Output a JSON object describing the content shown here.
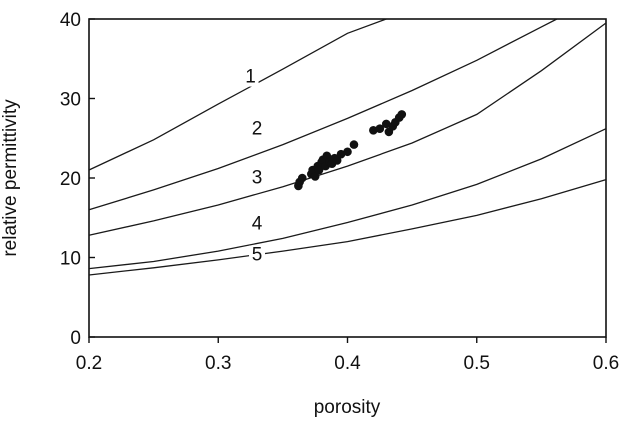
{
  "chart_data": {
    "type": "scatter",
    "xlabel": "porosity",
    "ylabel": "relative permittivity",
    "xlim": [
      0.2,
      0.6
    ],
    "ylim": [
      0,
      40
    ],
    "x_ticks": [
      "0.2",
      "0.3",
      "0.4",
      "0.5",
      "0.6"
    ],
    "y_ticks": [
      "0",
      "10",
      "20",
      "30",
      "40"
    ],
    "grid": false,
    "legend": "none",
    "series": [
      {
        "name": "1",
        "type": "line",
        "x": [
          0.2,
          0.25,
          0.3,
          0.35,
          0.4,
          0.43
        ],
        "y": [
          21,
          24.8,
          29.3,
          33.7,
          38.2,
          40
        ]
      },
      {
        "name": "2",
        "type": "line",
        "x": [
          0.2,
          0.25,
          0.3,
          0.35,
          0.4,
          0.45,
          0.5,
          0.55,
          0.562
        ],
        "y": [
          16,
          18.5,
          21.2,
          24.2,
          27.5,
          31,
          34.8,
          39,
          40
        ]
      },
      {
        "name": "3",
        "type": "line",
        "x": [
          0.2,
          0.25,
          0.3,
          0.35,
          0.4,
          0.45,
          0.5,
          0.55,
          0.6
        ],
        "y": [
          12.8,
          14.6,
          16.6,
          18.9,
          21.5,
          24.4,
          28,
          33.5,
          39.5
        ]
      },
      {
        "name": "4",
        "type": "line",
        "x": [
          0.2,
          0.25,
          0.3,
          0.35,
          0.4,
          0.45,
          0.5,
          0.55,
          0.6
        ],
        "y": [
          8.6,
          9.5,
          10.8,
          12.4,
          14.4,
          16.6,
          19.2,
          22.4,
          26.2
        ]
      },
      {
        "name": "5",
        "type": "line",
        "x": [
          0.2,
          0.25,
          0.3,
          0.35,
          0.4,
          0.45,
          0.5,
          0.55,
          0.6
        ],
        "y": [
          7.8,
          8.7,
          9.7,
          10.8,
          12,
          13.6,
          15.3,
          17.4,
          19.8
        ]
      },
      {
        "type": "scatter",
        "x": [
          0.362,
          0.363,
          0.365,
          0.372,
          0.373,
          0.375,
          0.377,
          0.378,
          0.38,
          0.381,
          0.383,
          0.384,
          0.386,
          0.388,
          0.39,
          0.392,
          0.395,
          0.4,
          0.405,
          0.42,
          0.425,
          0.43,
          0.432,
          0.435,
          0.437,
          0.44,
          0.442
        ],
        "y": [
          19,
          19.5,
          20,
          20.5,
          21,
          20.2,
          21.5,
          21,
          22,
          22.3,
          21.5,
          22.8,
          22,
          21.8,
          22.5,
          22.2,
          23,
          23.3,
          24.2,
          26,
          26.2,
          26.8,
          25.8,
          26.5,
          27,
          27.6,
          28
        ]
      }
    ],
    "curve_labels": [
      {
        "text": "1",
        "x": 0.325,
        "y": 32
      },
      {
        "text": "2",
        "x": 0.33,
        "y": 25.5
      },
      {
        "text": "3",
        "x": 0.33,
        "y": 19.3
      },
      {
        "text": "4",
        "x": 0.33,
        "y": 13.5
      },
      {
        "text": "5",
        "x": 0.33,
        "y": 9.6
      }
    ]
  }
}
